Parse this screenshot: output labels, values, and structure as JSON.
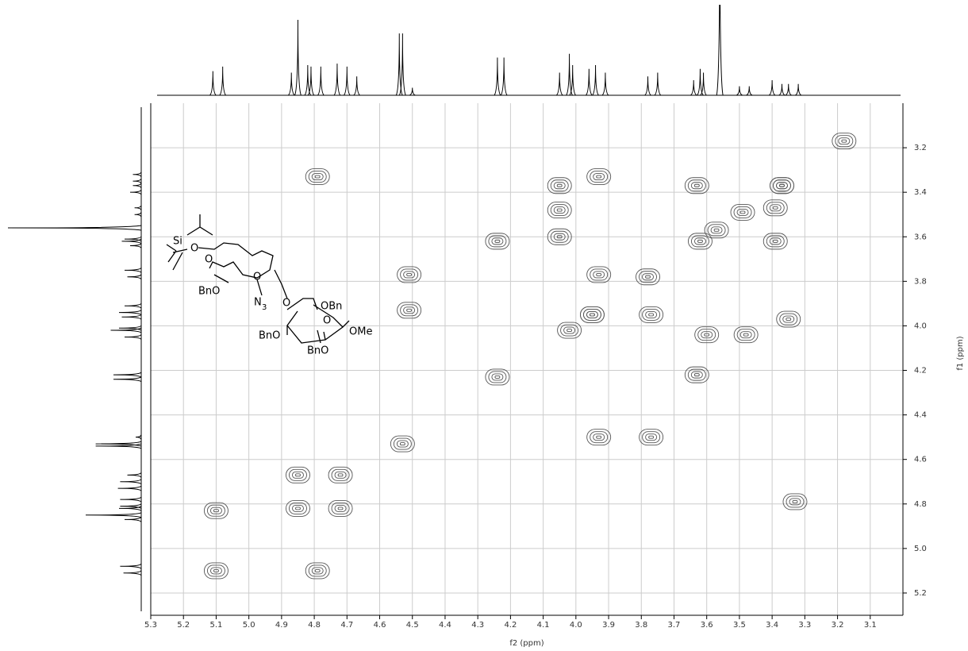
{
  "chart_data": {
    "type": "contour",
    "x_label": "f2 (ppm)",
    "y_label": "f1 (ppm)",
    "xlim": [
      5.3,
      3.0
    ],
    "ylim": [
      3.0,
      5.3
    ],
    "xticks": [
      5.3,
      5.2,
      5.1,
      {
        "value": 5.0,
        "label": "5.0"
      },
      4.9,
      4.8,
      4.7,
      4.6,
      4.5,
      4.4,
      4.3,
      4.2,
      4.1,
      {
        "value": 4.0,
        "label": "4.0"
      },
      3.9,
      3.8,
      3.7,
      3.6,
      3.5,
      3.4,
      3.3,
      3.2,
      3.1
    ],
    "yticks": [
      3.2,
      3.4,
      3.6,
      3.8,
      {
        "value": 4.0,
        "label": "4.0"
      },
      4.2,
      4.4,
      4.6,
      4.8,
      {
        "value": 5.0,
        "label": "5.0"
      },
      5.2
    ],
    "grid": true,
    "color": "#555555",
    "peaks": {
      "x": [
        5.1,
        4.85,
        4.72,
        4.85,
        4.72,
        4.53,
        4.24,
        4.02,
        3.95,
        3.78,
        3.62,
        3.57,
        3.49,
        3.37,
        5.1,
        4.79,
        4.79,
        4.51,
        4.51,
        4.24,
        4.05,
        4.05,
        4.05,
        3.93,
        3.93,
        3.95,
        3.77,
        3.93,
        3.77,
        3.63,
        3.63,
        3.6,
        3.48,
        3.39,
        3.39,
        3.35,
        3.37,
        3.33,
        3.18
      ],
      "y": [
        5.1,
        4.82,
        4.82,
        4.67,
        4.67,
        4.53,
        4.23,
        4.02,
        3.95,
        3.78,
        3.62,
        3.57,
        3.49,
        3.37,
        4.83,
        5.1,
        3.33,
        3.77,
        3.93,
        3.62,
        3.37,
        3.48,
        3.6,
        3.33,
        3.77,
        3.95,
        3.95,
        4.5,
        4.5,
        4.22,
        3.37,
        4.04,
        4.04,
        3.47,
        3.62,
        3.97,
        3.37,
        4.79,
        3.17
      ]
    },
    "projection": {
      "ppm": [
        5.11,
        5.08,
        4.87,
        4.85,
        4.82,
        4.81,
        4.78,
        4.73,
        4.7,
        4.67,
        4.54,
        4.53,
        4.5,
        4.24,
        4.22,
        4.05,
        4.02,
        4.01,
        3.96,
        3.94,
        3.91,
        3.78,
        3.75,
        3.64,
        3.62,
        3.61,
        3.56,
        3.5,
        3.47,
        3.4,
        3.37,
        3.35,
        3.32
      ],
      "intensity": [
        32,
        38,
        30,
        100,
        40,
        38,
        38,
        42,
        38,
        25,
        82,
        82,
        10,
        50,
        50,
        30,
        55,
        40,
        35,
        40,
        30,
        25,
        30,
        20,
        35,
        30,
        240,
        12,
        12,
        20,
        15,
        15,
        15
      ]
    }
  },
  "structure": {
    "labels": [
      "Si",
      "O",
      "O",
      "BnO",
      "O",
      "N",
      "3",
      "O",
      "OBn",
      "O",
      "BnO",
      "BnO",
      "OMe"
    ]
  }
}
